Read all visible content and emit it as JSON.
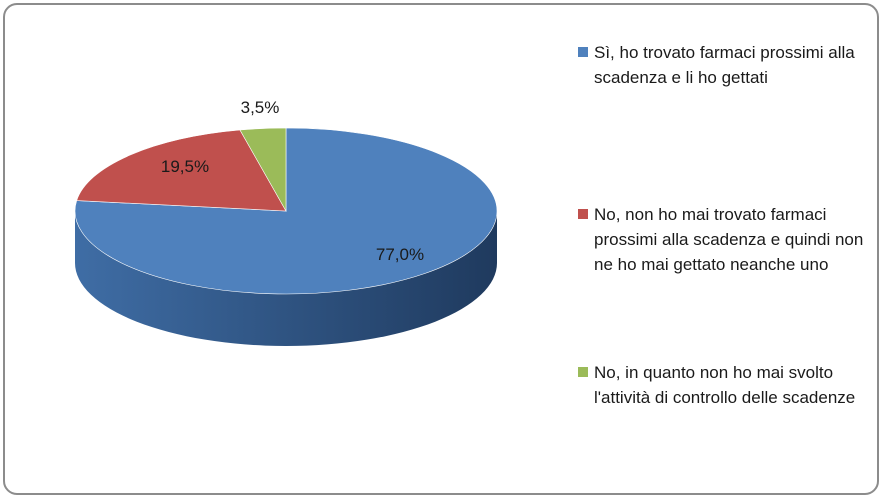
{
  "chart_data": {
    "type": "pie",
    "categories": [
      "Sì, ho trovato farmaci prossimi alla scadenza e li ho gettati",
      "No, non ho mai trovato farmaci prossimi alla scadenza e quindi non ne ho mai gettato neanche uno",
      "No, in quanto non ho mai svolto l'attività di controllo delle scadenze"
    ],
    "values": [
      77.0,
      19.5,
      3.5
    ],
    "data_labels": [
      "77,0%",
      "19,5%",
      "3,5%"
    ],
    "colors": [
      "#4f81bd",
      "#c0504d",
      "#9bbb59"
    ],
    "legend_position": "right"
  }
}
